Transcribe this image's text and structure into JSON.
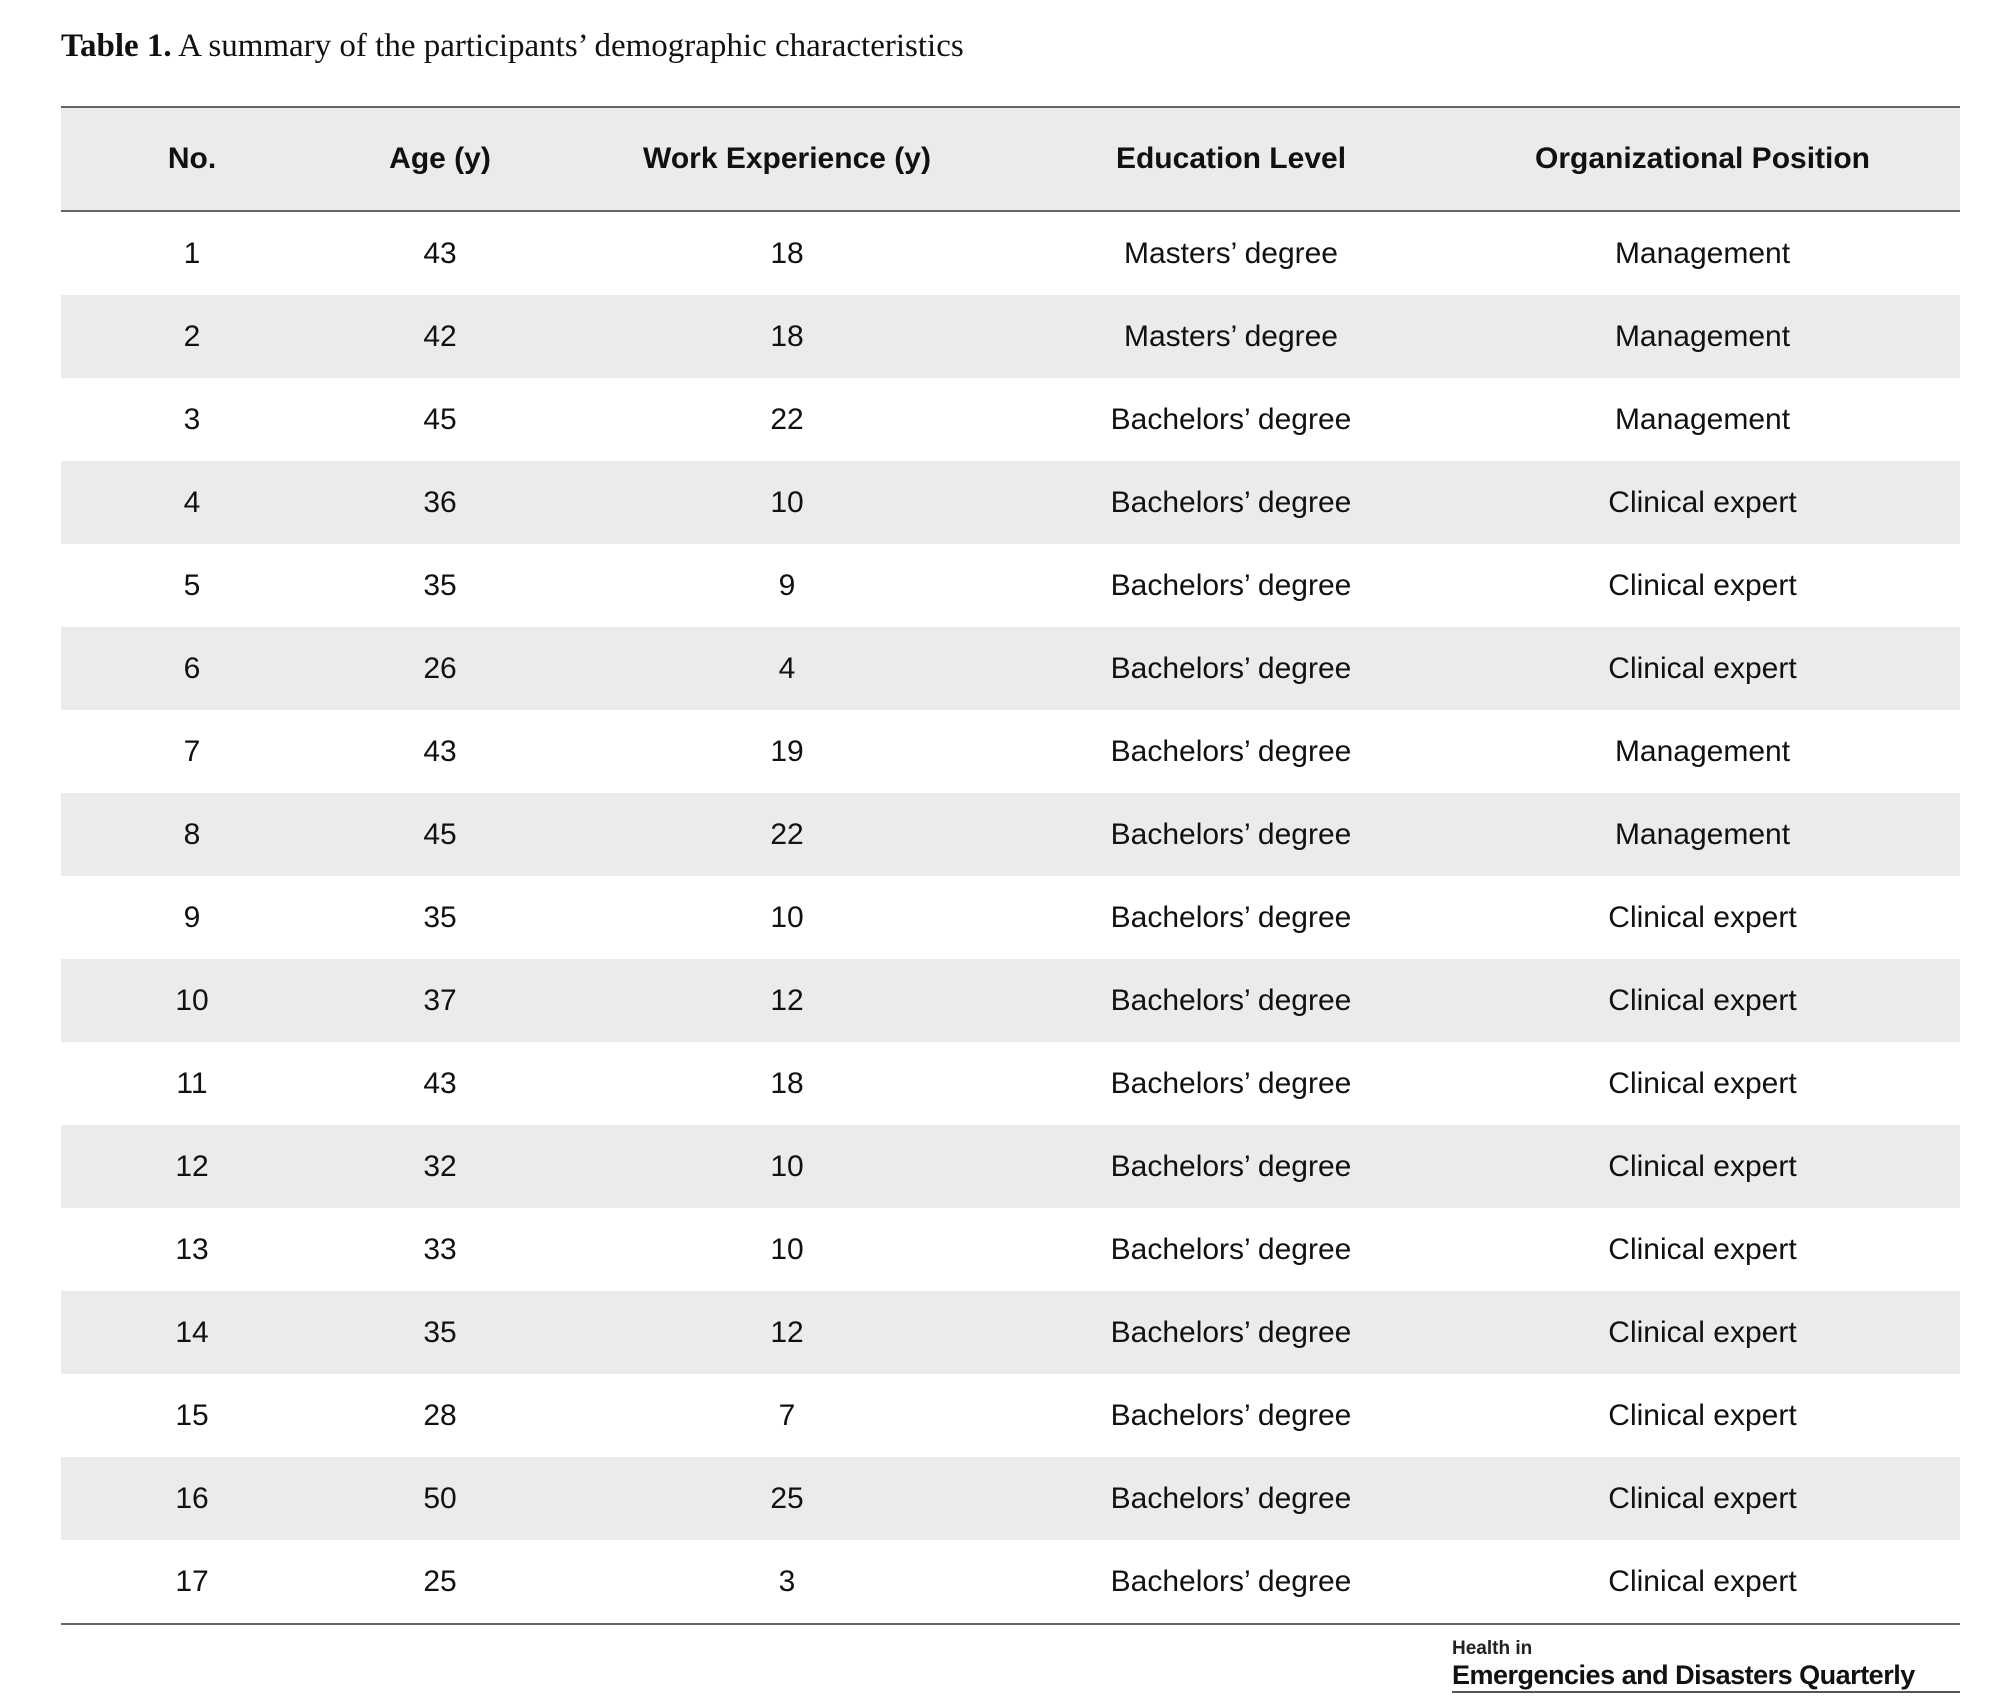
{
  "caption": {
    "label": "Table 1.",
    "text": "A summary of the participants’ demographic characteristics"
  },
  "table": {
    "columns": [
      "No.",
      "Age (y)",
      "Work Experience (y)",
      "Education Level",
      "Organizational Position"
    ],
    "rows": [
      [
        1,
        43,
        18,
        "Masters’ degree",
        "Management"
      ],
      [
        2,
        42,
        18,
        "Masters’ degree",
        "Management"
      ],
      [
        3,
        45,
        22,
        "Bachelors’ degree",
        "Management"
      ],
      [
        4,
        36,
        10,
        "Bachelors’ degree",
        "Clinical expert"
      ],
      [
        5,
        35,
        9,
        "Bachelors’ degree",
        "Clinical expert"
      ],
      [
        6,
        26,
        4,
        "Bachelors’ degree",
        "Clinical expert"
      ],
      [
        7,
        43,
        19,
        "Bachelors’ degree",
        "Management"
      ],
      [
        8,
        45,
        22,
        "Bachelors’ degree",
        "Management"
      ],
      [
        9,
        35,
        10,
        "Bachelors’ degree",
        "Clinical expert"
      ],
      [
        10,
        37,
        12,
        "Bachelors’ degree",
        "Clinical expert"
      ],
      [
        11,
        43,
        18,
        "Bachelors’ degree",
        "Clinical expert"
      ],
      [
        12,
        32,
        10,
        "Bachelors’ degree",
        "Clinical expert"
      ],
      [
        13,
        33,
        10,
        "Bachelors’ degree",
        "Clinical expert"
      ],
      [
        14,
        35,
        12,
        "Bachelors’ degree",
        "Clinical expert"
      ],
      [
        15,
        28,
        7,
        "Bachelors’ degree",
        "Clinical expert"
      ],
      [
        16,
        50,
        25,
        "Bachelors’ degree",
        "Clinical expert"
      ],
      [
        17,
        25,
        3,
        "Bachelors’ degree",
        "Clinical expert"
      ]
    ]
  },
  "logo": {
    "line1": "Health in",
    "line2": "Emergencies and Disasters Quarterly"
  }
}
